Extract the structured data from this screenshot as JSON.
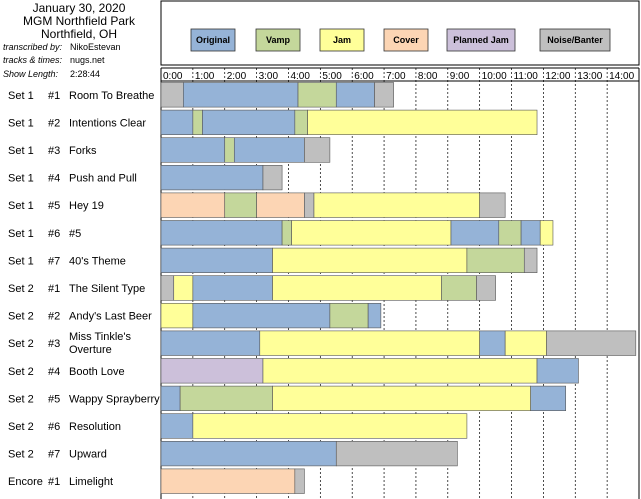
{
  "header": {
    "date": "January 30, 2020",
    "venue": "MGM Northfield Park",
    "city": "Northfield, OH",
    "transcribed_label": "transcribed by:",
    "transcribed_value": "NikoEstevan",
    "tracks_label": "tracks & times:",
    "tracks_value": "nugs.net",
    "length_label": "Show Length:",
    "length_value": "2:28:44"
  },
  "chart_data": {
    "type": "timeline",
    "title": "",
    "xlabel": "",
    "ylabel": "",
    "x_unit": "minutes",
    "xlim": [
      0,
      15
    ],
    "x_ticks": [
      "0:00",
      "1:00",
      "2:00",
      "3:00",
      "4:00",
      "5:00",
      "6:00",
      "7:00",
      "8:00",
      "9:00",
      "10:00",
      "11:00",
      "12:00",
      "13:00",
      "14:00"
    ],
    "legend": [
      {
        "name": "Original",
        "color": "#95b3d7"
      },
      {
        "name": "Vamp",
        "color": "#c4d79b"
      },
      {
        "name": "Jam",
        "color": "#ffff99"
      },
      {
        "name": "Cover",
        "color": "#fcd5b4"
      },
      {
        "name": "Planned Jam",
        "color": "#ccc0da"
      },
      {
        "name": "Noise/Banter",
        "color": "#bfbfbf"
      }
    ],
    "songs": [
      {
        "set": "Set 1",
        "num": "#1",
        "title": "Room To Breathe",
        "segments": [
          [
            "N",
            0,
            0.7
          ],
          [
            "O",
            0.7,
            4.3
          ],
          [
            "V",
            4.3,
            5.5
          ],
          [
            "O",
            5.5,
            6.7
          ],
          [
            "N",
            6.7,
            7.3
          ]
        ]
      },
      {
        "set": "Set 1",
        "num": "#2",
        "title": "Intentions Clear",
        "segments": [
          [
            "O",
            0,
            1.0
          ],
          [
            "V",
            1.0,
            1.3
          ],
          [
            "O",
            1.3,
            4.2
          ],
          [
            "V",
            4.2,
            4.6
          ],
          [
            "J",
            4.6,
            11.8
          ]
        ]
      },
      {
        "set": "Set 1",
        "num": "#3",
        "title": "Forks",
        "segments": [
          [
            "O",
            0,
            2.0
          ],
          [
            "V",
            2.0,
            2.3
          ],
          [
            "O",
            2.3,
            4.5
          ],
          [
            "N",
            4.5,
            5.3
          ]
        ]
      },
      {
        "set": "Set 1",
        "num": "#4",
        "title": "Push and Pull",
        "segments": [
          [
            "O",
            0,
            3.2
          ],
          [
            "N",
            3.2,
            3.8
          ]
        ]
      },
      {
        "set": "Set 1",
        "num": "#5",
        "title": "Hey 19",
        "segments": [
          [
            "C",
            0,
            2.0
          ],
          [
            "V",
            2.0,
            3.0
          ],
          [
            "C",
            3.0,
            4.5
          ],
          [
            "N",
            4.5,
            4.8
          ],
          [
            "J",
            4.8,
            10.0
          ],
          [
            "N",
            10.0,
            10.8
          ]
        ]
      },
      {
        "set": "Set 1",
        "num": "#6",
        "title": "#5",
        "segments": [
          [
            "O",
            0,
            3.8
          ],
          [
            "V",
            3.8,
            4.1
          ],
          [
            "J",
            4.1,
            9.1
          ],
          [
            "O",
            9.1,
            10.6
          ],
          [
            "V",
            10.6,
            11.3
          ],
          [
            "O",
            11.3,
            11.9
          ],
          [
            "J",
            11.9,
            12.3
          ]
        ]
      },
      {
        "set": "Set 1",
        "num": "#7",
        "title": "40's Theme",
        "segments": [
          [
            "O",
            0,
            3.5
          ],
          [
            "J",
            3.5,
            9.6
          ],
          [
            "V",
            9.6,
            11.4
          ],
          [
            "N",
            11.4,
            11.8
          ]
        ]
      },
      {
        "set": "Set 2",
        "num": "#1",
        "title": "The Silent Type",
        "segments": [
          [
            "N",
            0,
            0.4
          ],
          [
            "J",
            0.4,
            1.0
          ],
          [
            "O",
            1.0,
            3.5
          ],
          [
            "J",
            3.5,
            8.8
          ],
          [
            "V",
            8.8,
            9.9
          ],
          [
            "N",
            9.9,
            10.5
          ]
        ]
      },
      {
        "set": "Set 2",
        "num": "#2",
        "title": "Andy's Last Beer",
        "segments": [
          [
            "J",
            0,
            1.0
          ],
          [
            "O",
            1.0,
            5.3
          ],
          [
            "V",
            5.3,
            6.5
          ],
          [
            "O",
            6.5,
            6.9
          ]
        ]
      },
      {
        "set": "Set 2",
        "num": "#3",
        "title": "Miss Tinkle's Overture",
        "segments": [
          [
            "O",
            0,
            3.1
          ],
          [
            "J",
            3.1,
            10.0
          ],
          [
            "O",
            10.0,
            10.8
          ],
          [
            "J",
            10.8,
            12.1
          ],
          [
            "N",
            12.1,
            14.9
          ]
        ]
      },
      {
        "set": "Set 2",
        "num": "#4",
        "title": "Booth Love",
        "segments": [
          [
            "P",
            0,
            3.2
          ],
          [
            "J",
            3.2,
            11.8
          ],
          [
            "O",
            11.8,
            13.1
          ]
        ]
      },
      {
        "set": "Set 2",
        "num": "#5",
        "title": "Wappy Sprayberry",
        "segments": [
          [
            "O",
            0,
            0.6
          ],
          [
            "V",
            0.6,
            3.5
          ],
          [
            "J",
            3.5,
            11.6
          ],
          [
            "O",
            11.6,
            12.7
          ]
        ]
      },
      {
        "set": "Set 2",
        "num": "#6",
        "title": "Resolution",
        "segments": [
          [
            "O",
            0,
            1.0
          ],
          [
            "J",
            1.0,
            9.6
          ]
        ]
      },
      {
        "set": "Set 2",
        "num": "#7",
        "title": "Upward",
        "segments": [
          [
            "O",
            0,
            5.5
          ],
          [
            "N",
            5.5,
            9.3
          ]
        ]
      },
      {
        "set": "Encore",
        "num": "#1",
        "title": "Limelight",
        "segments": [
          [
            "C",
            0,
            4.2
          ],
          [
            "N",
            4.2,
            4.5
          ]
        ]
      }
    ]
  }
}
